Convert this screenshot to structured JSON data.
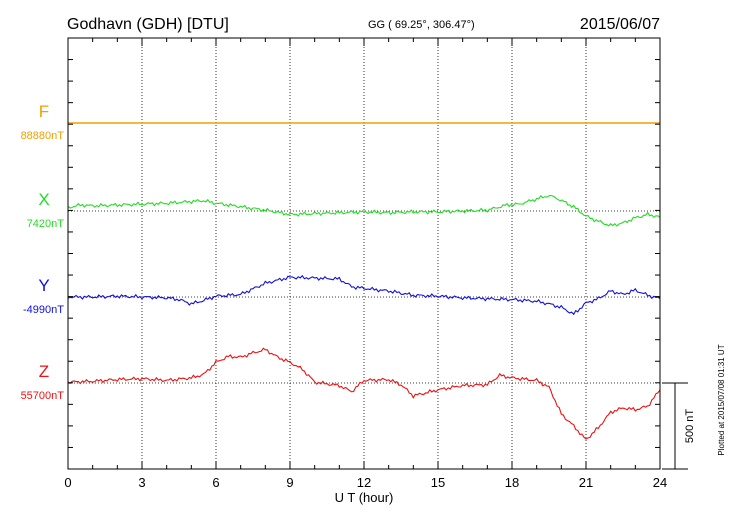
{
  "header": {
    "station": "Godhavn (GDH)  [DTU]",
    "coords": "GG ( 69.25°, 306.47°)",
    "date": "2015/06/07"
  },
  "footer": {
    "plotted": "Plotted at 2015/07/08 01:31  UT",
    "scale_label": "500 nT"
  },
  "chart_data": {
    "type": "line",
    "xlabel": "U T (hour)",
    "xlim": [
      0,
      24
    ],
    "xticks": [
      0,
      3,
      6,
      9,
      12,
      15,
      18,
      21,
      24
    ],
    "scale_bar_nT": 500,
    "series": [
      {
        "name": "F",
        "baseline_label": "88880nT",
        "color": "#f0a000",
        "x": [
          0,
          24
        ],
        "y": [
          0,
          0
        ]
      },
      {
        "name": "X",
        "baseline_label": "7420nT",
        "color": "#22dd22",
        "x": [
          0,
          0.5,
          1,
          2,
          3,
          4,
          5,
          5.5,
          6,
          7,
          8,
          9,
          10,
          11,
          12,
          13,
          14,
          15,
          16,
          17,
          17.8,
          18.3,
          19,
          19.5,
          19.8,
          20.5,
          21,
          21.5,
          22,
          22.5,
          23,
          23.5,
          24
        ],
        "y": [
          20,
          35,
          30,
          35,
          40,
          45,
          55,
          60,
          45,
          25,
          5,
          -20,
          -15,
          -10,
          -5,
          -10,
          -5,
          -5,
          0,
          5,
          35,
          40,
          70,
          90,
          75,
          25,
          -30,
          -60,
          -85,
          -70,
          -40,
          -20,
          -35
        ]
      },
      {
        "name": "Y",
        "baseline_label": "-4990nT",
        "color": "#1010dd",
        "x": [
          0,
          1,
          2,
          3,
          4,
          4.5,
          5,
          5.5,
          6,
          6.5,
          7,
          8,
          9,
          10,
          11,
          11.5,
          12,
          13,
          14,
          15,
          16,
          17,
          18,
          19,
          19.5,
          20,
          20.5,
          21,
          21.5,
          22,
          22.5,
          23,
          23.5,
          24
        ],
        "y": [
          0,
          0,
          5,
          0,
          -5,
          -15,
          -40,
          -20,
          5,
          10,
          15,
          80,
          115,
          110,
          105,
          60,
          50,
          35,
          10,
          5,
          -5,
          -10,
          -15,
          -25,
          -40,
          -60,
          -100,
          -35,
          -10,
          35,
          15,
          40,
          10,
          -10
        ]
      },
      {
        "name": "Z",
        "baseline_label": "55700nT",
        "color": "#ee1111",
        "x": [
          0,
          1,
          2,
          3,
          4,
          5,
          5.5,
          6,
          6.5,
          7,
          7.5,
          8,
          8.5,
          9,
          9.5,
          10,
          11,
          11.5,
          12,
          13,
          13.5,
          14,
          15,
          16,
          17,
          17.5,
          18,
          19,
          19.5,
          20,
          20.5,
          21,
          21.5,
          22,
          22.5,
          23,
          23.5,
          24
        ],
        "y": [
          5,
          10,
          20,
          25,
          15,
          30,
          50,
          120,
          155,
          150,
          175,
          195,
          150,
          120,
          80,
          5,
          -15,
          -50,
          15,
          20,
          -10,
          -75,
          -40,
          -15,
          -10,
          45,
          30,
          15,
          -25,
          -180,
          -250,
          -330,
          -260,
          -170,
          -145,
          -155,
          -135,
          -40
        ]
      }
    ]
  }
}
